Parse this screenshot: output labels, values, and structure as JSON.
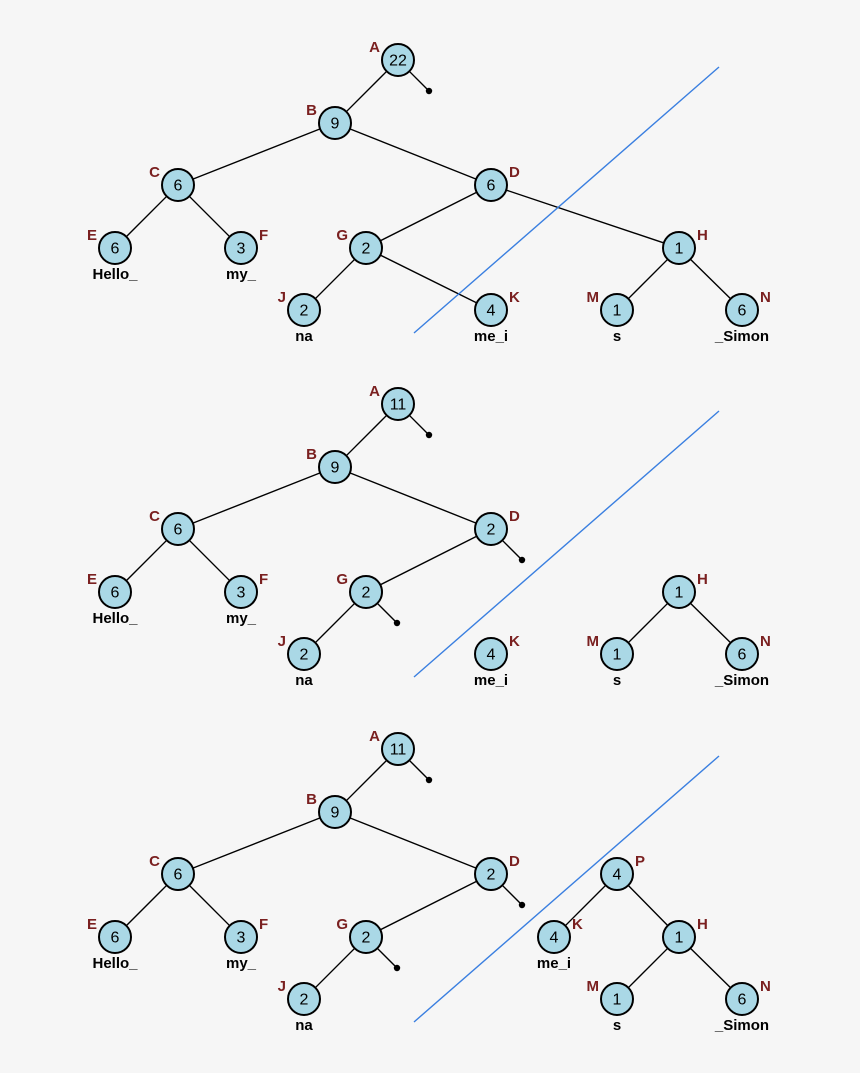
{
  "colors": {
    "node_fill": "#aad8e6",
    "label_color": "#7a2020",
    "cut_line_color": "#3a7fe0",
    "background": "#f6f6f6"
  },
  "panels": [
    {
      "nodes": {
        "A": {
          "weight": "22"
        },
        "B": {
          "weight": "9"
        },
        "C": {
          "weight": "6"
        },
        "D": {
          "weight": "6"
        },
        "E": {
          "weight": "6",
          "text": "Hello_"
        },
        "F": {
          "weight": "3",
          "text": "my_"
        },
        "G": {
          "weight": "2"
        },
        "H": {
          "weight": "1"
        },
        "J": {
          "weight": "2",
          "text": "na"
        },
        "K": {
          "weight": "4",
          "text": "me_i"
        },
        "M": {
          "weight": "1",
          "text": "s"
        },
        "N": {
          "weight": "6",
          "text": "_Simon"
        }
      }
    },
    {
      "nodes": {
        "A": {
          "weight": "11"
        },
        "B": {
          "weight": "9"
        },
        "C": {
          "weight": "6"
        },
        "D": {
          "weight": "2"
        },
        "E": {
          "weight": "6",
          "text": "Hello_"
        },
        "F": {
          "weight": "3",
          "text": "my_"
        },
        "G": {
          "weight": "2"
        },
        "J": {
          "weight": "2",
          "text": "na"
        },
        "K": {
          "weight": "4",
          "text": "me_i"
        },
        "H": {
          "weight": "1"
        },
        "M": {
          "weight": "1",
          "text": "s"
        },
        "N": {
          "weight": "6",
          "text": "_Simon"
        }
      }
    },
    {
      "nodes": {
        "A": {
          "weight": "11"
        },
        "B": {
          "weight": "9"
        },
        "C": {
          "weight": "6"
        },
        "D": {
          "weight": "2"
        },
        "E": {
          "weight": "6",
          "text": "Hello_"
        },
        "F": {
          "weight": "3",
          "text": "my_"
        },
        "G": {
          "weight": "2"
        },
        "J": {
          "weight": "2",
          "text": "na"
        },
        "P": {
          "weight": "4"
        },
        "K": {
          "weight": "4",
          "text": "me_i"
        },
        "H": {
          "weight": "1"
        },
        "M": {
          "weight": "1",
          "text": "s"
        },
        "N": {
          "weight": "6",
          "text": "_Simon"
        }
      }
    }
  ]
}
